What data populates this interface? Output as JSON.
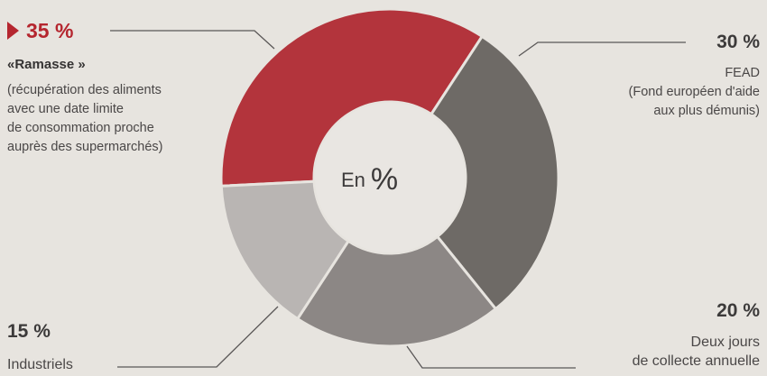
{
  "chart_data": {
    "type": "donut",
    "center_label": "En",
    "center_symbol": "%",
    "slices": [
      {
        "pct_label": "35 %",
        "value": 35,
        "name": "«Ramasse »",
        "desc": [
          "(récupération des aliments",
          "avec une date limite",
          "de consommation proche",
          "auprès des supermarchés)"
        ],
        "color": "#b3343c"
      },
      {
        "pct_label": "30 %",
        "value": 30,
        "name": "FEAD",
        "desc": [
          "(Fond européen d'aide",
          "aux plus démunis)"
        ],
        "color": "#6e6a66"
      },
      {
        "pct_label": "20 %",
        "value": 20,
        "name": "Deux jours",
        "desc": [
          "de collecte annuelle"
        ],
        "color": "#8c8785"
      },
      {
        "pct_label": "15 %",
        "value": 15,
        "name": "Industriels",
        "desc": [],
        "color": "#b9b5b3"
      }
    ]
  }
}
